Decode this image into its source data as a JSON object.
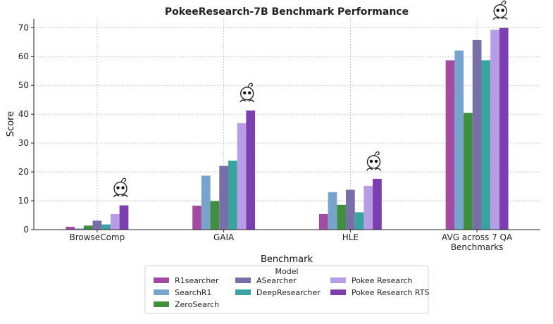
{
  "chart_data": {
    "type": "bar",
    "title": "PokeeResearch-7B Benchmark Performance",
    "xlabel": "Benchmark",
    "ylabel": "Score",
    "ylim": [
      0,
      73
    ],
    "yticks": [
      0,
      10,
      20,
      30,
      40,
      50,
      60,
      70
    ],
    "grid": true,
    "legend_title": "Model",
    "legend_position": "bottom-center",
    "categories": [
      "BrowseComp",
      "GAIA",
      "HLE",
      "AVG across 7 QA Benchmarks"
    ],
    "category_lines": [
      [
        "BrowseComp"
      ],
      [
        "GAIA"
      ],
      [
        "HLE"
      ],
      [
        "AVG across 7 QA",
        "Benchmarks"
      ]
    ],
    "series": [
      {
        "name": "R1searcher",
        "color": "#a34aa3",
        "values": [
          1.0,
          8.3,
          5.4,
          58.7
        ]
      },
      {
        "name": "SearchR1",
        "color": "#77a4cc",
        "values": [
          0.4,
          18.7,
          13.0,
          62.1
        ]
      },
      {
        "name": "ZeroSearch",
        "color": "#3f8f3f",
        "values": [
          1.4,
          9.9,
          8.6,
          40.5
        ]
      },
      {
        "name": "ASearcher",
        "color": "#786fa8",
        "values": [
          3.1,
          22.1,
          13.8,
          65.7
        ]
      },
      {
        "name": "DeepResearcher",
        "color": "#3aa3a0",
        "values": [
          1.8,
          23.9,
          6.0,
          58.7
        ]
      },
      {
        "name": "Pokee Research",
        "color": "#b79ce6",
        "values": [
          5.4,
          36.9,
          15.2,
          69.3
        ]
      },
      {
        "name": "Pokee Research RTS",
        "color": "#7b3fb0",
        "values": [
          8.4,
          41.3,
          17.6,
          69.9
        ]
      }
    ],
    "legend_order": [
      "R1searcher",
      "SearchR1",
      "ZeroSearch",
      "ASearcher",
      "DeepResearcher",
      "Pokee Research",
      "Pokee Research RTS"
    ],
    "annotations": [
      {
        "type": "mascot-icon",
        "category": "BrowseComp",
        "series": "Pokee Research RTS"
      },
      {
        "type": "mascot-icon",
        "category": "GAIA",
        "series": "Pokee Research RTS"
      },
      {
        "type": "mascot-icon",
        "category": "HLE",
        "series": "Pokee Research RTS"
      },
      {
        "type": "mascot-icon",
        "category": "AVG across 7 QA Benchmarks",
        "series": "Pokee Research RTS"
      }
    ]
  }
}
